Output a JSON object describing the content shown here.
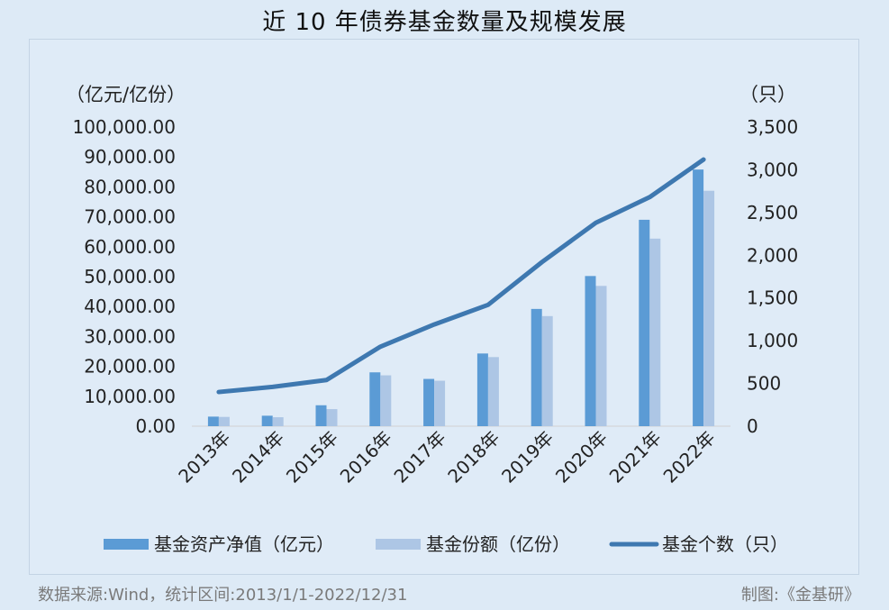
{
  "title": "近 10 年债券基金数量及规模发展",
  "footer": {
    "source": "数据来源:Wind，统计区间:2013/1/1-2022/12/31",
    "credit": "制图:《金基研》"
  },
  "colors": {
    "nav": "#5b9bd5",
    "shares": "#adc6e5",
    "count": "#3e78b0"
  },
  "chart_data": {
    "type": "bar",
    "title": "近 10 年债券基金数量及规模发展",
    "categories": [
      "2013年",
      "2014年",
      "2015年",
      "2016年",
      "2017年",
      "2018年",
      "2019年",
      "2020年",
      "2021年",
      "2022年"
    ],
    "y_left": {
      "unit_label": "（亿元/亿份）",
      "range": [
        0,
        100000
      ],
      "ticks": [
        "0.00",
        "10,000.00",
        "20,000.00",
        "30,000.00",
        "40,000.00",
        "50,000.00",
        "60,000.00",
        "70,000.00",
        "80,000.00",
        "90,000.00",
        "100,000.00"
      ]
    },
    "y_right": {
      "unit_label": "（只）",
      "range": [
        0,
        3500
      ],
      "ticks": [
        "0",
        "500",
        "1,000",
        "1,500",
        "2,000",
        "2,500",
        "3,000",
        "3,500"
      ]
    },
    "series": [
      {
        "name": "基金资产净值（亿元）",
        "type": "bar",
        "axis": "left",
        "values": [
          3200,
          3500,
          7000,
          18000,
          15800,
          24300,
          39200,
          50200,
          69000,
          85800
        ]
      },
      {
        "name": "基金份额（亿份）",
        "type": "bar",
        "axis": "left",
        "values": [
          3100,
          3000,
          5700,
          17000,
          15200,
          23100,
          36800,
          46900,
          62700,
          78700
        ]
      },
      {
        "name": "基金个数（只）",
        "type": "line",
        "axis": "right",
        "values": [
          400,
          460,
          540,
          930,
          1190,
          1420,
          1920,
          2380,
          2680,
          3120
        ]
      }
    ],
    "legend_position": "bottom",
    "grid": false
  }
}
